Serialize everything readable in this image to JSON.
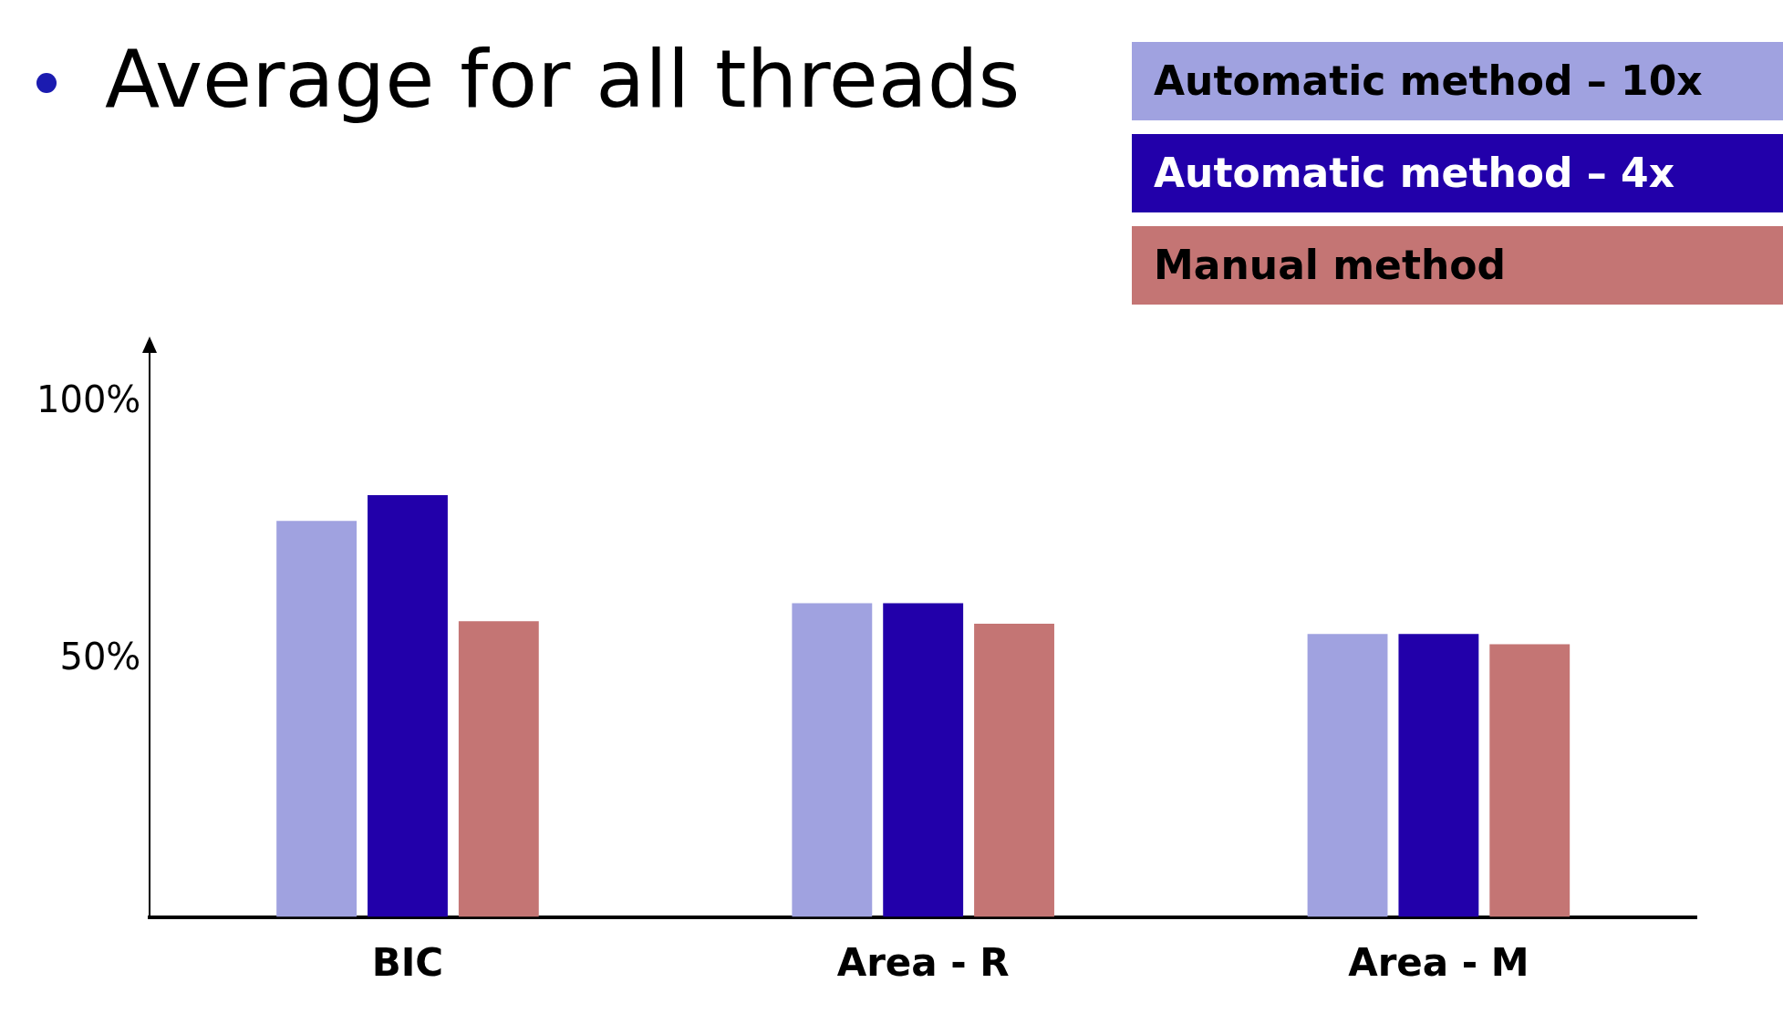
{
  "chart_data": {
    "type": "bar",
    "title": "Average for all threads",
    "categories": [
      "BIC",
      "Area - R",
      "Area - M"
    ],
    "series": [
      {
        "name": "Automatic method – 10x",
        "color": "#a0a2e0",
        "values": [
          77,
          61,
          55
        ]
      },
      {
        "name": "Automatic method – 4x",
        "color": "#2200aa",
        "values": [
          82,
          61,
          55
        ]
      },
      {
        "name": "Manual  method",
        "color": "#c47574",
        "values": [
          57.5,
          57,
          53
        ]
      }
    ],
    "ylim": [
      0,
      110
    ],
    "yticks": [
      {
        "value": 50,
        "label": "50%"
      },
      {
        "value": 100,
        "label": "100%"
      }
    ],
    "grid": false,
    "legend": "top right"
  }
}
